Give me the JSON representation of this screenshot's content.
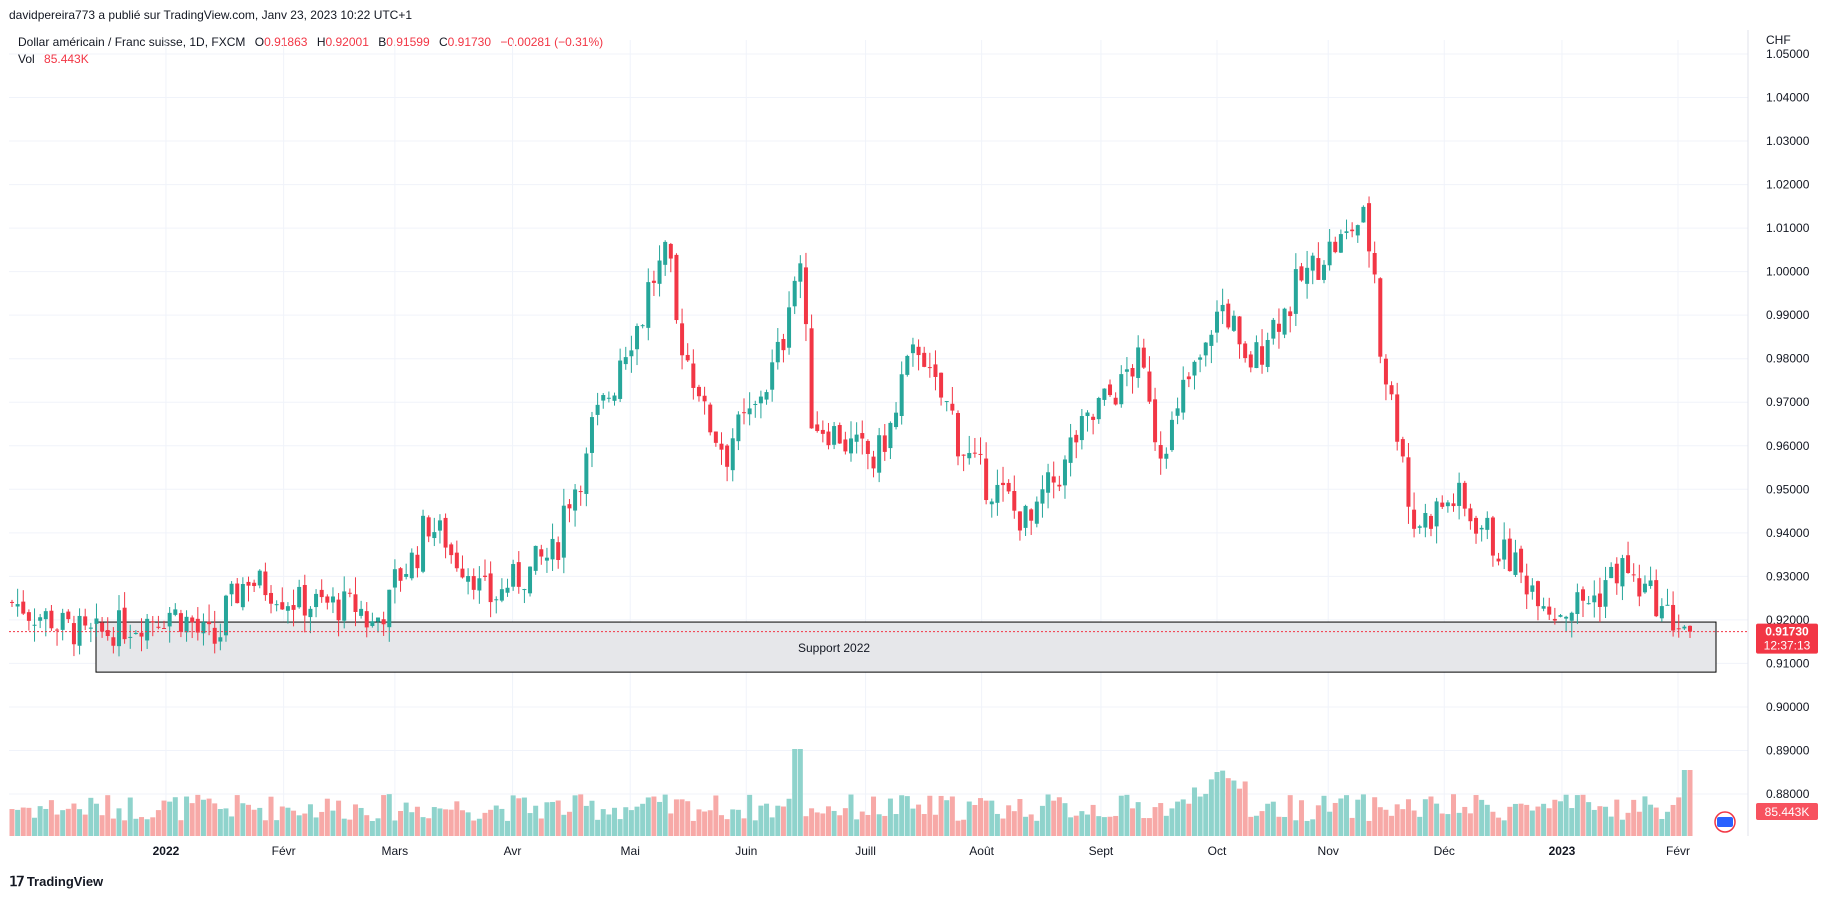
{
  "header": {
    "published_by": "davidpereira773 a publié sur TradingView.com, Janv 23, 2023 10:22 UTC+1"
  },
  "legend": {
    "instrument": "Dollar américain / Franc suisse, 1D, FXCM",
    "o_key": "O",
    "o_val": "0.91863",
    "h_key": "H",
    "h_val": "0.92001",
    "b_key": "B",
    "b_val": "0.91599",
    "c_key": "C",
    "c_val": "0.91730",
    "change": "−0.00281 (−0.31%)",
    "vol_key": "Vol",
    "vol_val": "85.443K"
  },
  "currency": "CHF",
  "footer": {
    "brand": "TradingView"
  },
  "colors": {
    "up": "#26a69a",
    "down": "#ef5350",
    "candle_up": "#26a69a",
    "candle_down": "#f23645",
    "vol_up": "#8fd3cc",
    "vol_down": "#f7a9a7",
    "grid": "#f0f3fa",
    "price_tag": "#f23645",
    "vol_tag": "#f7525f"
  },
  "chart_data": {
    "type": "candlestick",
    "symbol": "USDCHF",
    "timeframe": "1D",
    "ylim": [
      0.878,
      1.05
    ],
    "y_ticks": [
      "1.05000",
      "1.04000",
      "1.03000",
      "1.02000",
      "1.01000",
      "1.00000",
      "0.99000",
      "0.98000",
      "0.97000",
      "0.96000",
      "0.95000",
      "0.94000",
      "0.93000",
      "0.92000",
      "0.91000",
      "0.90000",
      "0.89000",
      "0.88000"
    ],
    "x_ticks": [
      {
        "label": "2022",
        "bold": true,
        "x_index": 0.08
      },
      {
        "label": "Févr",
        "bold": false,
        "x_index": 0.153
      },
      {
        "label": "Mars",
        "bold": false,
        "x_index": 0.222
      },
      {
        "label": "Avr",
        "bold": false,
        "x_index": 0.295
      },
      {
        "label": "Mai",
        "bold": false,
        "x_index": 0.368
      },
      {
        "label": "Juin",
        "bold": false,
        "x_index": 0.44
      },
      {
        "label": "Juill",
        "bold": false,
        "x_index": 0.514
      },
      {
        "label": "Août",
        "bold": false,
        "x_index": 0.586
      },
      {
        "label": "Sept",
        "bold": false,
        "x_index": 0.66
      },
      {
        "label": "Oct",
        "bold": false,
        "x_index": 0.732
      },
      {
        "label": "Nov",
        "bold": false,
        "x_index": 0.801
      },
      {
        "label": "Déc",
        "bold": false,
        "x_index": 0.873
      },
      {
        "label": "2023",
        "bold": true,
        "x_index": 0.946
      },
      {
        "label": "Févr",
        "bold": false,
        "x_index": 1.018
      }
    ],
    "key_points": [
      {
        "date": "2021-12-01",
        "close": 0.924
      },
      {
        "date": "2021-12-20",
        "close": 0.916
      },
      {
        "date": "2022-01-10",
        "close": 0.922
      },
      {
        "date": "2022-01-20",
        "close": 0.915
      },
      {
        "date": "2022-01-28",
        "close": 0.93
      },
      {
        "date": "2022-02-10",
        "close": 0.924
      },
      {
        "date": "2022-02-24",
        "close": 0.923
      },
      {
        "date": "2022-03-01",
        "close": 0.919
      },
      {
        "date": "2022-03-15",
        "close": 0.942
      },
      {
        "date": "2022-03-30",
        "close": 0.925
      },
      {
        "date": "2022-04-14",
        "close": 0.935
      },
      {
        "date": "2022-04-28",
        "close": 0.972
      },
      {
        "date": "2022-05-12",
        "close": 1.003
      },
      {
        "date": "2022-05-19",
        "close": 0.976
      },
      {
        "date": "2022-05-27",
        "close": 0.958
      },
      {
        "date": "2022-06-07",
        "close": 0.974
      },
      {
        "date": "2022-06-15",
        "close": 1.002
      },
      {
        "date": "2022-06-17",
        "close": 0.967
      },
      {
        "date": "2022-07-04",
        "close": 0.956
      },
      {
        "date": "2022-07-14",
        "close": 0.983
      },
      {
        "date": "2022-07-28",
        "close": 0.955
      },
      {
        "date": "2022-08-11",
        "close": 0.942
      },
      {
        "date": "2022-08-25",
        "close": 0.965
      },
      {
        "date": "2022-09-07",
        "close": 0.979
      },
      {
        "date": "2022-09-13",
        "close": 0.96
      },
      {
        "date": "2022-09-28",
        "close": 0.992
      },
      {
        "date": "2022-10-04",
        "close": 0.978
      },
      {
        "date": "2022-10-20",
        "close": 1.001
      },
      {
        "date": "2022-11-02",
        "close": 1.012
      },
      {
        "date": "2022-11-10",
        "close": 0.964
      },
      {
        "date": "2022-11-15",
        "close": 0.942
      },
      {
        "date": "2022-11-25",
        "close": 0.948
      },
      {
        "date": "2022-12-08",
        "close": 0.934
      },
      {
        "date": "2022-12-20",
        "close": 0.922
      },
      {
        "date": "2022-12-29",
        "close": 0.925
      },
      {
        "date": "2023-01-05",
        "close": 0.932
      },
      {
        "date": "2023-01-19",
        "close": 0.919
      },
      {
        "date": "2023-01-23",
        "close": 0.9173
      }
    ],
    "support_zone": {
      "label": "Support 2022",
      "low": 0.908,
      "high": 0.9195
    },
    "last_price": "0.91730",
    "countdown": "12:37:13",
    "volume_last": "85.443K"
  }
}
